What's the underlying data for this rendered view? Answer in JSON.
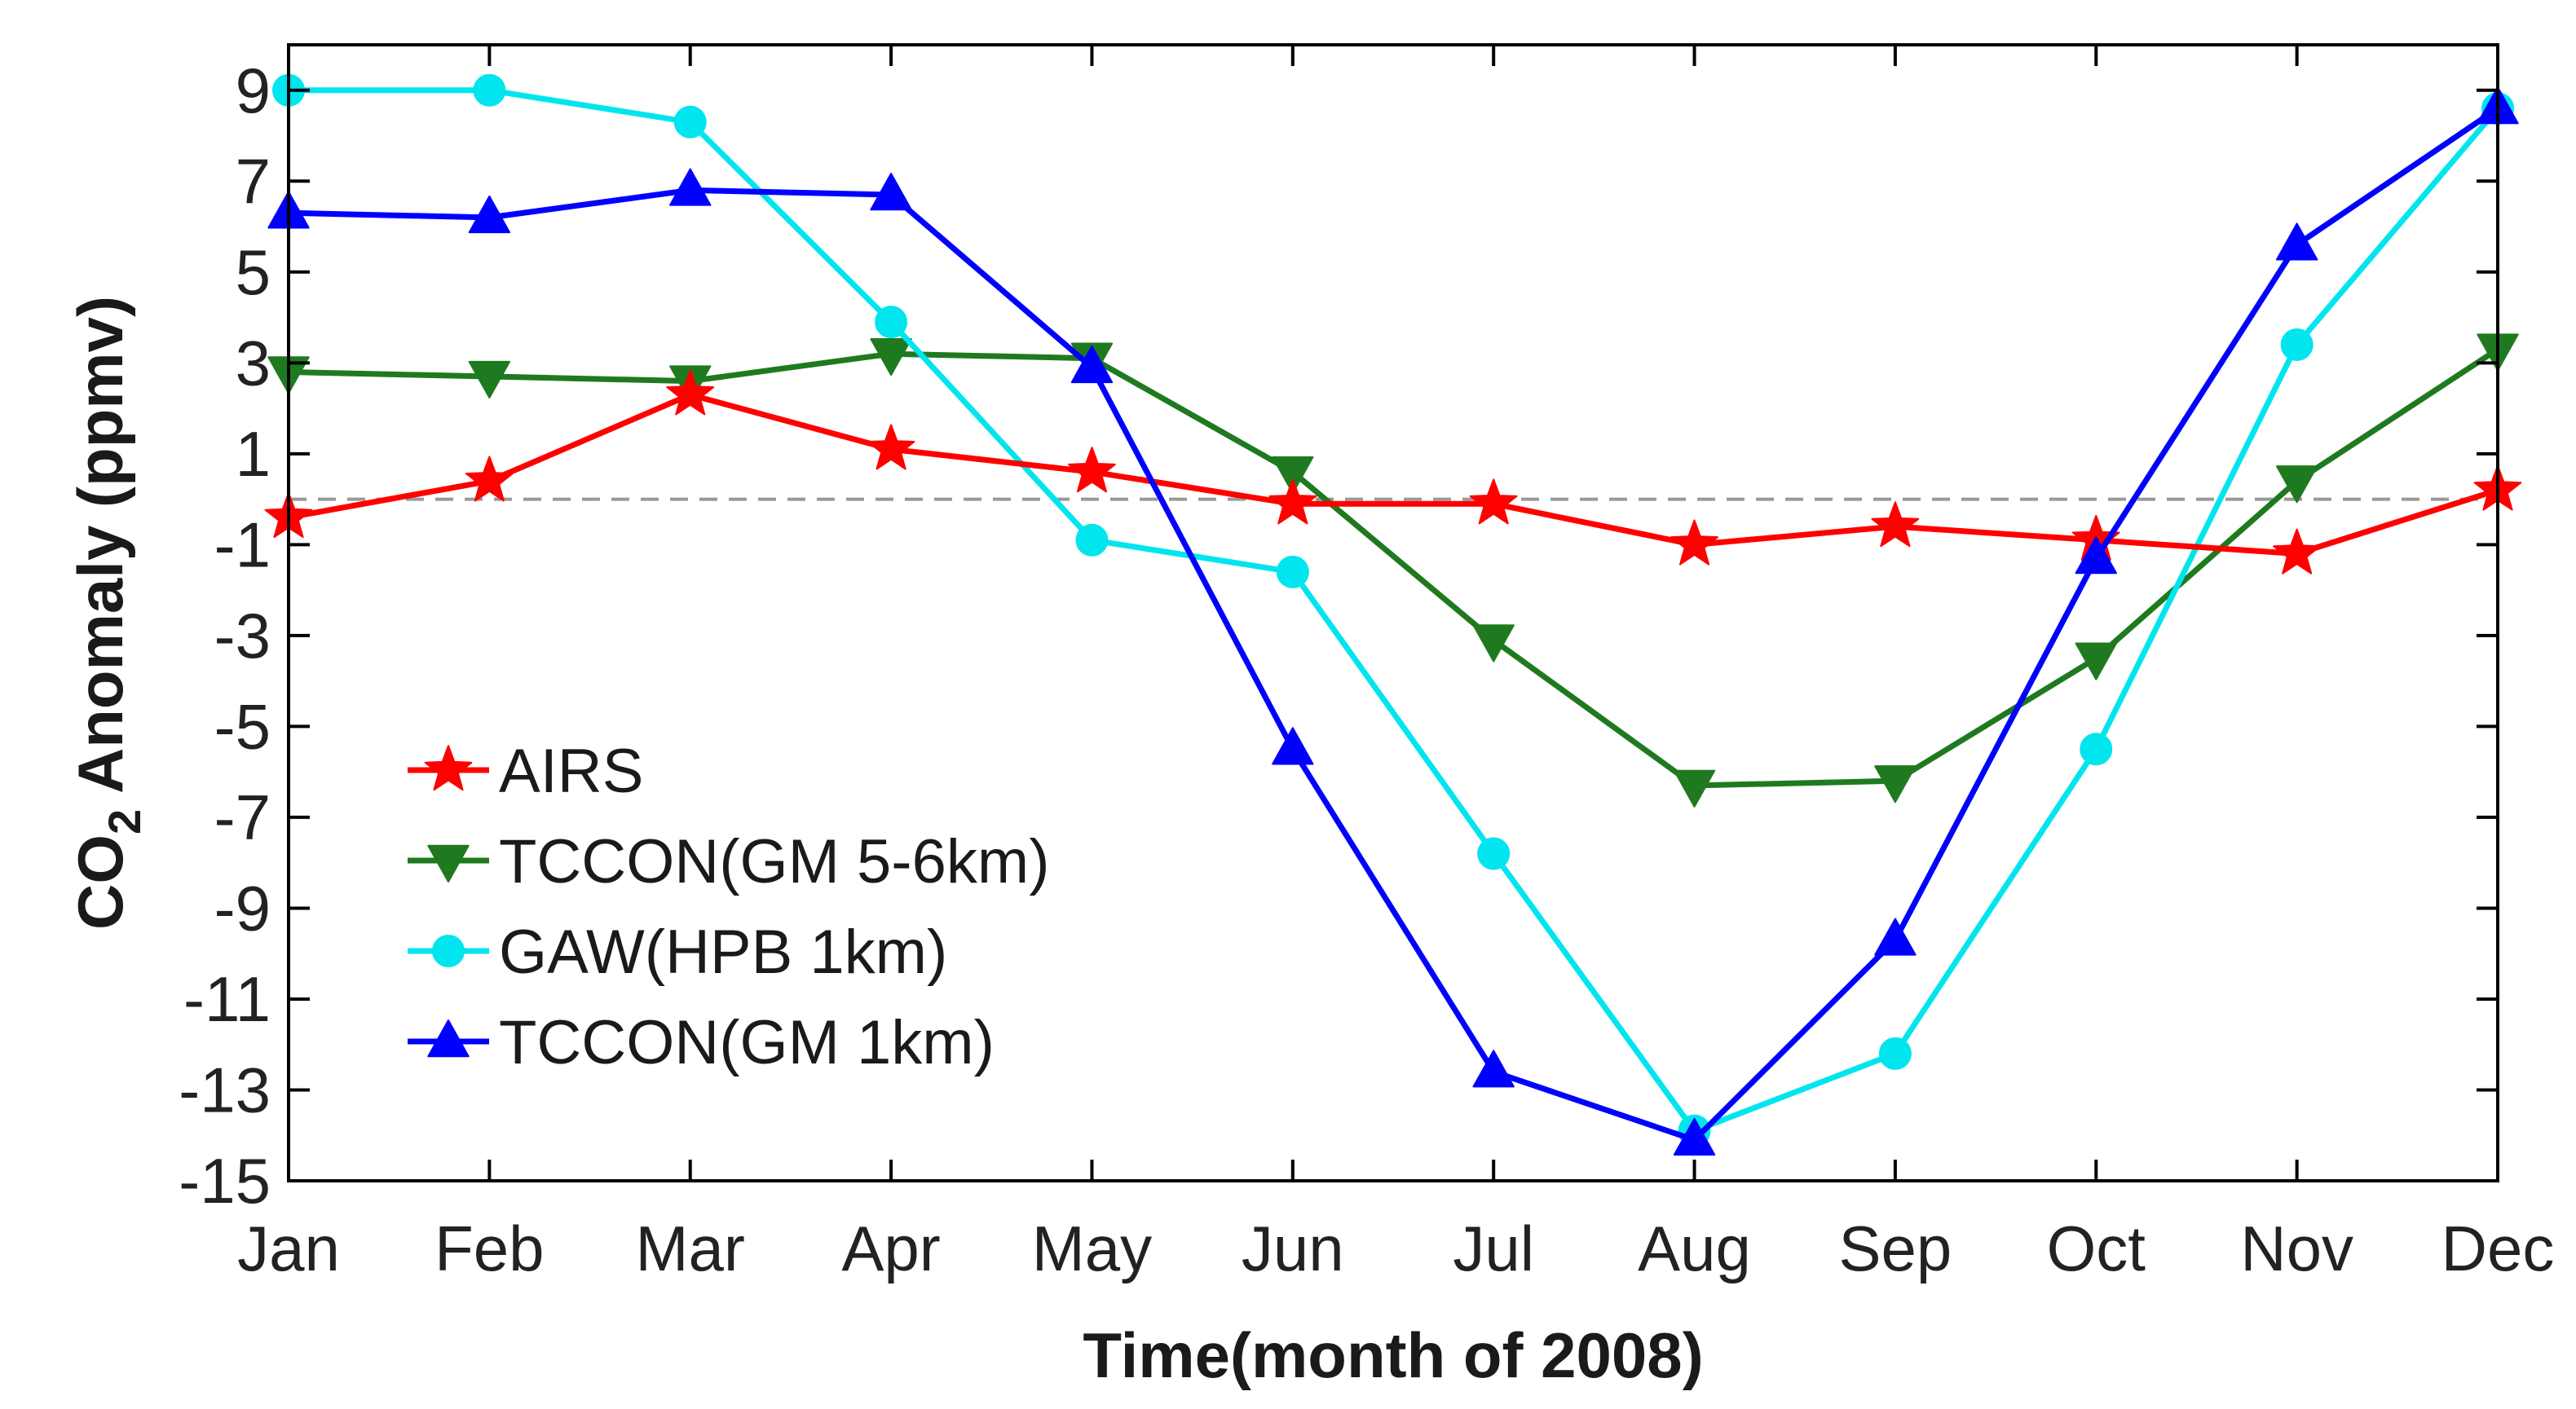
{
  "chart_data": {
    "type": "line",
    "title": "",
    "xlabel": "Time(month of 2008)",
    "ylabel_prefix": "CO",
    "ylabel_subscript": "2",
    "ylabel_suffix": " Anomaly (ppmv)",
    "categories": [
      "Jan",
      "Feb",
      "Mar",
      "Apr",
      "May",
      "Jun",
      "Jul",
      "Aug",
      "Sep",
      "Oct",
      "Nov",
      "Dec"
    ],
    "ylim": [
      -15,
      10
    ],
    "yticks": [
      9,
      7,
      5,
      3,
      1,
      -1,
      -3,
      -5,
      -7,
      -9,
      -11,
      -13,
      -15
    ],
    "reference_line": 0,
    "grid": false,
    "legend_position": "lower-left",
    "series": [
      {
        "name": "AIRS",
        "color": "#ff0000",
        "marker": "star",
        "values": [
          -0.4,
          0.4,
          2.3,
          1.1,
          0.6,
          -0.1,
          -0.1,
          -1.0,
          -0.6,
          -0.9,
          -1.2,
          0.2
        ]
      },
      {
        "name": "TCCON(GM 5-6km)",
        "color": "#1f7a1f",
        "marker": "triangle-down",
        "values": [
          2.8,
          2.7,
          2.6,
          3.2,
          3.1,
          0.6,
          -3.1,
          -6.3,
          -6.2,
          -3.5,
          0.4,
          3.3
        ]
      },
      {
        "name": "GAW(HPB 1km)",
        "color": "#00e5ee",
        "marker": "circle",
        "values": [
          9.0,
          9.0,
          8.3,
          3.9,
          -0.9,
          -1.6,
          -7.8,
          -13.9,
          -12.2,
          -5.5,
          3.4,
          8.6
        ]
      },
      {
        "name": "TCCON(GM 1km)",
        "color": "#0000ff",
        "marker": "triangle-up",
        "values": [
          6.3,
          6.2,
          6.8,
          6.7,
          2.9,
          -5.5,
          -12.6,
          -14.1,
          -9.7,
          -1.3,
          5.6,
          8.6
        ]
      }
    ]
  }
}
